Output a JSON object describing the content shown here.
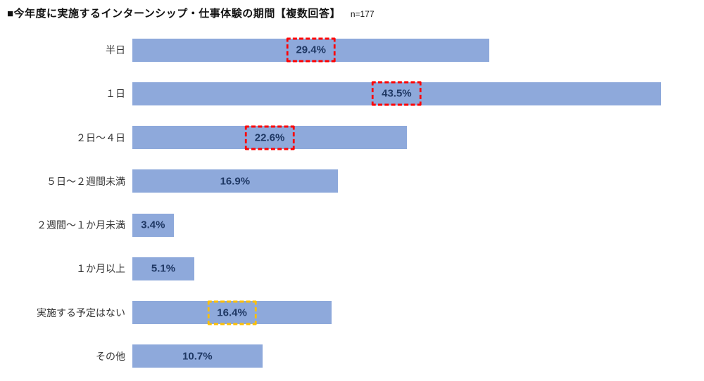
{
  "header": {
    "title": "■今年度に実施するインターンシップ・仕事体験の期間【複数回答】",
    "sample_size": "n=177"
  },
  "chart_data": {
    "type": "bar",
    "orientation": "horizontal",
    "title": "今年度に実施するインターンシップ・仕事体験の期間【複数回答】",
    "sample_size": 177,
    "categories": [
      "半日",
      "１日",
      "２日～４日",
      "５日～２週間未満",
      "２週間～１か月未満",
      "１か月以上",
      "実施する予定はない",
      "その他"
    ],
    "values": [
      29.4,
      43.5,
      22.6,
      16.9,
      3.4,
      5.1,
      16.4,
      10.7
    ],
    "value_labels": [
      "29.4%",
      "43.5%",
      "22.6%",
      "16.9%",
      "3.4%",
      "5.1%",
      "16.4%",
      "10.7%"
    ],
    "highlights": [
      "red",
      "red",
      "red",
      null,
      null,
      null,
      "orange",
      null
    ],
    "xlim": [
      0,
      46
    ],
    "grid": false,
    "legend": false,
    "colors": {
      "bar_fill": "#8EA9DB",
      "value_label_text": "#1F3864",
      "highlight_red": "#FF0000",
      "highlight_orange": "#FFC000"
    }
  }
}
